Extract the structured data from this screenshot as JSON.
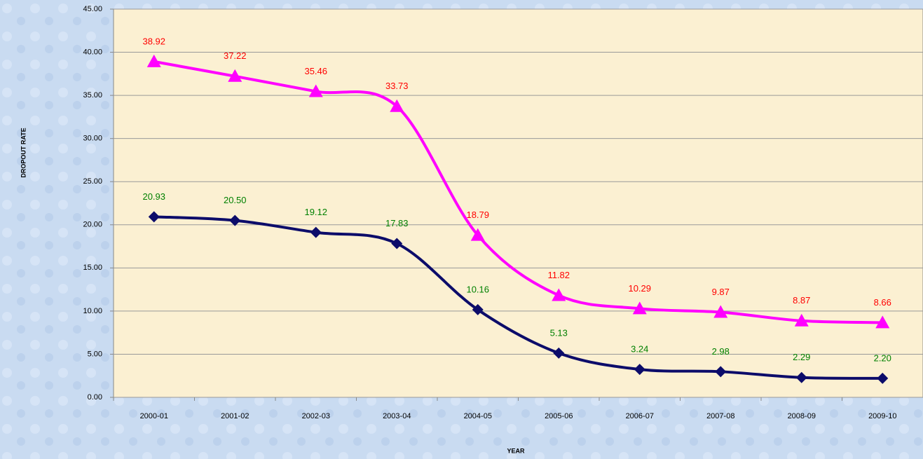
{
  "chart_data": {
    "type": "line",
    "y_label": "DROPOUT RATE",
    "x_label": "YEAR",
    "categories": [
      "2000-01",
      "2001-02",
      "2002-03",
      "2003-04",
      "2004-05",
      "2005-06",
      "2006-07",
      "2007-08",
      "2008-09",
      "2009-10"
    ],
    "series": [
      {
        "color": "#ff00ff",
        "marker": "triangle",
        "label_color": "#ff0000",
        "values": [
          38.92,
          37.22,
          35.46,
          33.73,
          18.79,
          11.82,
          10.29,
          9.87,
          8.87,
          8.66
        ],
        "value_labels": [
          "38.92",
          "37.22",
          "35.46",
          "33.73",
          "18.79",
          "11.82",
          "10.29",
          "9.87",
          "8.87",
          "8.66"
        ]
      },
      {
        "color": "#0c0c6a",
        "marker": "diamond",
        "label_color": "#008000",
        "values": [
          20.93,
          20.5,
          19.12,
          17.83,
          10.16,
          5.13,
          3.24,
          2.98,
          2.29,
          2.2
        ],
        "value_labels": [
          "20.93",
          "20.50",
          "19.12",
          "17.83",
          "10.16",
          "5.13",
          "3.24",
          "2.98",
          "2.29",
          "2.20"
        ]
      }
    ],
    "ylim": [
      0,
      45
    ],
    "yticks": [
      {
        "value": 0,
        "label": "0.00"
      },
      {
        "value": 5,
        "label": "5.00"
      },
      {
        "value": 10,
        "label": "10.00"
      },
      {
        "value": 15,
        "label": "15.00"
      },
      {
        "value": 20,
        "label": "20.00"
      },
      {
        "value": 25,
        "label": "25.00"
      },
      {
        "value": 30,
        "label": "30.00"
      },
      {
        "value": 35,
        "label": "35.00"
      },
      {
        "value": 40,
        "label": "40.00"
      },
      {
        "value": 45,
        "label": "45.00"
      }
    ],
    "grid": true,
    "smooth": true
  }
}
